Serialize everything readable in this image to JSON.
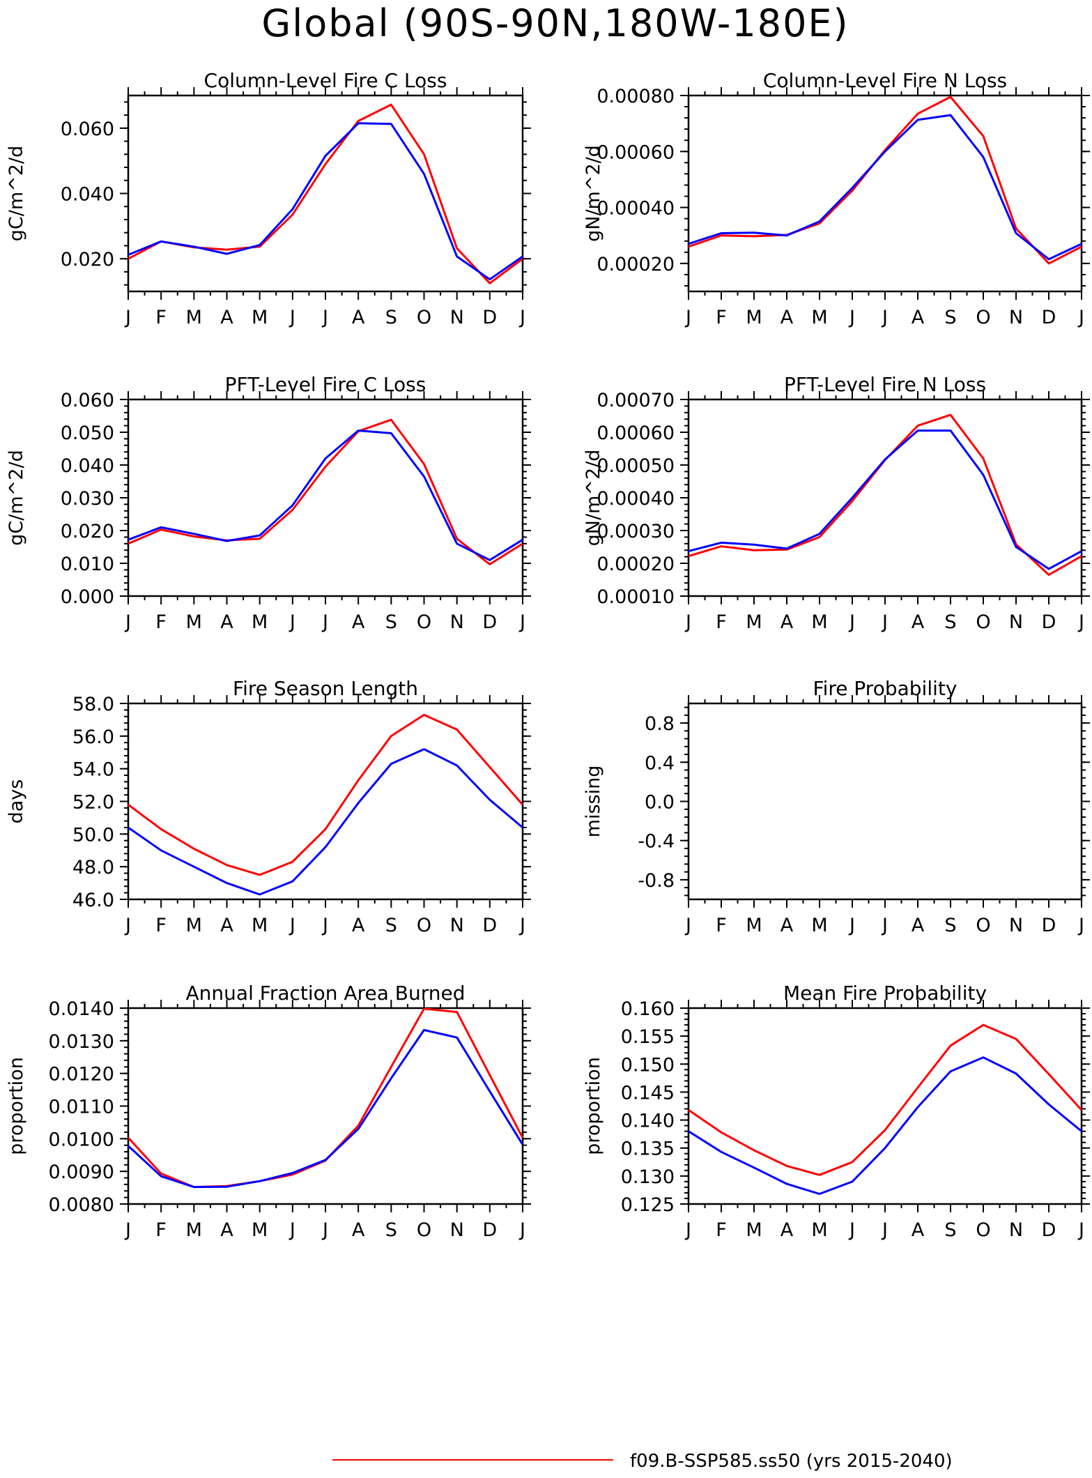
{
  "figure_title": "Global (90S-90N,180W-180E)",
  "legend": [
    {
      "label": "f09.B-SSP585.ss50 (yrs 2015-2040)",
      "color": "#ff0000"
    }
  ],
  "colors": {
    "series_a": "#ff0000",
    "series_b": "#0000ff",
    "axis": "#000000"
  },
  "chart_data": [
    {
      "type": "line",
      "title": "Column-Level Fire C Loss",
      "ylabel": "gC/m^2/d",
      "categories": [
        "J",
        "F",
        "M",
        "A",
        "M",
        "J",
        "J",
        "A",
        "S",
        "O",
        "N",
        "D",
        "J"
      ],
      "ylim": [
        0.01,
        0.07
      ],
      "yticks": [
        0.02,
        0.04,
        0.06
      ],
      "ytick_labels": [
        "0.020",
        "0.040",
        "0.060"
      ],
      "series": [
        {
          "color": "#ff0000",
          "values": [
            0.02,
            0.0253,
            0.0235,
            0.0228,
            0.0237,
            0.0335,
            0.049,
            0.0622,
            0.0672,
            0.052,
            0.0232,
            0.0125,
            0.02
          ]
        },
        {
          "color": "#0000ff",
          "values": [
            0.0212,
            0.0253,
            0.0237,
            0.0215,
            0.0242,
            0.0352,
            0.0515,
            0.0615,
            0.0613,
            0.046,
            0.0207,
            0.0137,
            0.0207
          ]
        }
      ]
    },
    {
      "type": "line",
      "title": "Column-Level Fire N Loss",
      "ylabel": "gN/m^2/d",
      "categories": [
        "J",
        "F",
        "M",
        "A",
        "M",
        "J",
        "J",
        "A",
        "S",
        "O",
        "N",
        "D",
        "J"
      ],
      "ylim": [
        0.0001,
        0.0008
      ],
      "yticks": [
        0.0002,
        0.0004,
        0.0006,
        0.0008
      ],
      "ytick_labels": [
        "0.00020",
        "0.00040",
        "0.00060",
        "0.00080"
      ],
      "series": [
        {
          "color": "#ff0000",
          "values": [
            0.00026,
            0.0003,
            0.000297,
            0.000302,
            0.000343,
            0.00046,
            0.000605,
            0.000735,
            0.000795,
            0.000655,
            0.000325,
            0.0002,
            0.00026
          ]
        },
        {
          "color": "#0000ff",
          "values": [
            0.00027,
            0.000308,
            0.00031,
            0.0003,
            0.00035,
            0.00047,
            0.0006,
            0.000713,
            0.00073,
            0.00058,
            0.000308,
            0.000215,
            0.00027
          ]
        }
      ]
    },
    {
      "type": "line",
      "title": "PFT-Level Fire C Loss",
      "ylabel": "gC/m^2/d",
      "categories": [
        "J",
        "F",
        "M",
        "A",
        "M",
        "J",
        "J",
        "A",
        "S",
        "O",
        "N",
        "D",
        "J"
      ],
      "ylim": [
        0.0,
        0.06
      ],
      "yticks": [
        0.0,
        0.01,
        0.02,
        0.03,
        0.04,
        0.05,
        0.06
      ],
      "ytick_labels": [
        "0.000",
        "0.010",
        "0.020",
        "0.030",
        "0.040",
        "0.050",
        "0.060"
      ],
      "series": [
        {
          "color": "#ff0000",
          "values": [
            0.016,
            0.0203,
            0.0182,
            0.017,
            0.0175,
            0.0263,
            0.0395,
            0.0503,
            0.0538,
            0.0403,
            0.0175,
            0.0097,
            0.016
          ]
        },
        {
          "color": "#0000ff",
          "values": [
            0.0172,
            0.021,
            0.019,
            0.0168,
            0.0185,
            0.0277,
            0.042,
            0.0505,
            0.0497,
            0.0365,
            0.016,
            0.011,
            0.0172
          ]
        }
      ]
    },
    {
      "type": "line",
      "title": "PFT-Level Fire N Loss",
      "ylabel": "gN/m^2/d",
      "categories": [
        "J",
        "F",
        "M",
        "A",
        "M",
        "J",
        "J",
        "A",
        "S",
        "O",
        "N",
        "D",
        "J"
      ],
      "ylim": [
        0.0001,
        0.0007
      ],
      "yticks": [
        0.0001,
        0.0002,
        0.0003,
        0.0004,
        0.0005,
        0.0006,
        0.0007
      ],
      "ytick_labels": [
        "0.00010",
        "0.00020",
        "0.00030",
        "0.00040",
        "0.00050",
        "0.00060",
        "0.00070"
      ],
      "series": [
        {
          "color": "#ff0000",
          "values": [
            0.000222,
            0.000252,
            0.00024,
            0.000242,
            0.00028,
            0.00039,
            0.000515,
            0.00062,
            0.000653,
            0.00052,
            0.000258,
            0.000165,
            0.000222
          ]
        },
        {
          "color": "#0000ff",
          "values": [
            0.000237,
            0.000263,
            0.000257,
            0.000245,
            0.00029,
            0.0004,
            0.000517,
            0.000605,
            0.000605,
            0.00047,
            0.00025,
            0.000183,
            0.000237
          ]
        }
      ]
    },
    {
      "type": "line",
      "title": "Fire Season Length",
      "ylabel": "days",
      "categories": [
        "J",
        "F",
        "M",
        "A",
        "M",
        "J",
        "J",
        "A",
        "S",
        "O",
        "N",
        "D",
        "J"
      ],
      "ylim": [
        46.0,
        58.0
      ],
      "yticks": [
        46.0,
        48.0,
        50.0,
        52.0,
        54.0,
        56.0,
        58.0
      ],
      "ytick_labels": [
        "46.0",
        "48.0",
        "50.0",
        "52.0",
        "54.0",
        "56.0",
        "58.0"
      ],
      "series": [
        {
          "color": "#ff0000",
          "values": [
            51.8,
            50.3,
            49.1,
            48.1,
            47.5,
            48.3,
            50.3,
            53.3,
            56.0,
            57.3,
            56.4,
            54.1,
            51.8
          ]
        },
        {
          "color": "#0000ff",
          "values": [
            50.4,
            49.0,
            48.0,
            47.0,
            46.3,
            47.1,
            49.2,
            51.9,
            54.3,
            55.2,
            54.2,
            52.1,
            50.4
          ]
        }
      ]
    },
    {
      "type": "line",
      "title": "Fire Probability",
      "ylabel": "missing",
      "categories": [
        "J",
        "F",
        "M",
        "A",
        "M",
        "J",
        "J",
        "A",
        "S",
        "O",
        "N",
        "D",
        "J"
      ],
      "ylim": [
        -1.0,
        1.0
      ],
      "yticks": [
        -0.8,
        -0.4,
        0.0,
        0.4,
        0.8
      ],
      "ytick_labels": [
        "-0.8",
        "-0.4",
        "0.0",
        "0.4",
        "0.8"
      ],
      "series": []
    },
    {
      "type": "line",
      "title": "Annual Fraction Area Burned",
      "ylabel": "proportion",
      "categories": [
        "J",
        "F",
        "M",
        "A",
        "M",
        "J",
        "J",
        "A",
        "S",
        "O",
        "N",
        "D",
        "J"
      ],
      "ylim": [
        0.008,
        0.014
      ],
      "yticks": [
        0.008,
        0.009,
        0.01,
        0.011,
        0.012,
        0.013,
        0.014
      ],
      "ytick_labels": [
        "0.0080",
        "0.0090",
        "0.0100",
        "0.0110",
        "0.0120",
        "0.0130",
        "0.0140"
      ],
      "series": [
        {
          "color": "#ff0000",
          "values": [
            0.01003,
            0.00893,
            0.00852,
            0.00855,
            0.0087,
            0.0089,
            0.00933,
            0.0104,
            0.0122,
            0.01398,
            0.01388,
            0.01195,
            0.01003
          ]
        },
        {
          "color": "#0000ff",
          "values": [
            0.00978,
            0.00885,
            0.00852,
            0.00853,
            0.0087,
            0.00895,
            0.00935,
            0.0103,
            0.01185,
            0.01333,
            0.0131,
            0.01145,
            0.00982
          ]
        }
      ]
    },
    {
      "type": "line",
      "title": "Mean Fire Probability",
      "ylabel": "proportion",
      "categories": [
        "J",
        "F",
        "M",
        "A",
        "M",
        "J",
        "J",
        "A",
        "S",
        "O",
        "N",
        "D",
        "J"
      ],
      "ylim": [
        0.125,
        0.16
      ],
      "yticks": [
        0.125,
        0.13,
        0.135,
        0.14,
        0.145,
        0.15,
        0.155,
        0.16
      ],
      "ytick_labels": [
        "0.125",
        "0.130",
        "0.135",
        "0.140",
        "0.145",
        "0.150",
        "0.155",
        "0.160"
      ],
      "series": [
        {
          "color": "#ff0000",
          "values": [
            0.1418,
            0.1378,
            0.1346,
            0.1318,
            0.1302,
            0.1325,
            0.1382,
            0.1458,
            0.1533,
            0.157,
            0.1545,
            0.1482,
            0.1418
          ]
        },
        {
          "color": "#0000ff",
          "values": [
            0.138,
            0.1343,
            0.1315,
            0.1286,
            0.1268,
            0.129,
            0.135,
            0.1423,
            0.1487,
            0.1512,
            0.1483,
            0.1428,
            0.138
          ]
        }
      ]
    }
  ]
}
